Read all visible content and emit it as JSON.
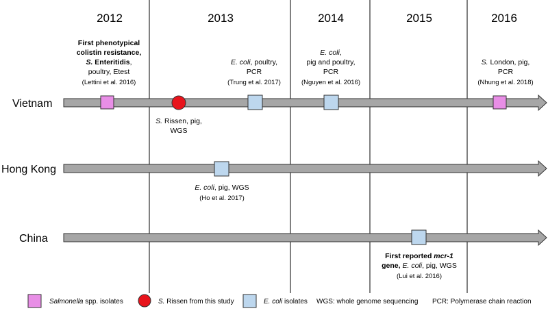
{
  "years": [
    "2012",
    "2013",
    "2014",
    "2015",
    "2016"
  ],
  "countries": [
    "Vietnam",
    "Hong Kong",
    "China"
  ],
  "colors": {
    "salmonella": "#e88ee6",
    "rissen": "#e8141c",
    "ecoli": "#bdd7ee",
    "arrow_fill": "#a6a6a6",
    "marker_border": "#333333"
  },
  "marker_types": {
    "salmonella": "square",
    "rissen": "circle",
    "ecoli": "square"
  },
  "annotations": {
    "vn_2012": {
      "line1": "First phenotypical",
      "line2": "colistin resistance,",
      "line3a": "S.",
      "line3b": "Enteritidis",
      "line3c": ",",
      "line4": "poultry, Etest",
      "cite": "(Lettini et al. 2016)"
    },
    "vn_2013_ecoli": {
      "line1a": "E. coli",
      "line1b": ", poultry,",
      "line2": "PCR",
      "cite": "(Trung et al. 2017)"
    },
    "vn_2014": {
      "line1a": "E. coli",
      "line1b": ",",
      "line2": "pig and poultry,",
      "line3": "PCR",
      "cite": "(Nguyen et al. 2016)"
    },
    "vn_2016": {
      "line1a": "S.",
      "line1b": " London, pig,",
      "line2": "PCR",
      "cite": "(Nhung et al. 2018)"
    },
    "vn_rissen": {
      "line1a": "S.",
      "line1b": " Rissen, pig,",
      "line2": "WGS"
    },
    "hk": {
      "line1a": "E. coli",
      "line1b": ", pig, WGS",
      "cite": "(Ho et al. 2017)"
    },
    "cn": {
      "line1a": "First reported ",
      "line1b": "mcr-1",
      "line2a": "gene, ",
      "line2b": "E. coli",
      "line2c": ", pig, WGS",
      "cite": "(Lui et al. 2016)"
    }
  },
  "legend": {
    "salmonella_a": "Salmonella",
    "salmonella_b": " spp. isolates",
    "rissen_a": "S.",
    "rissen_b": " Rissen from this study",
    "ecoli_a": "E. coli",
    "ecoli_b": " isolates",
    "wgs": "WGS: whole genome sequencing",
    "pcr": "PCR: Polymerase chain reaction"
  }
}
